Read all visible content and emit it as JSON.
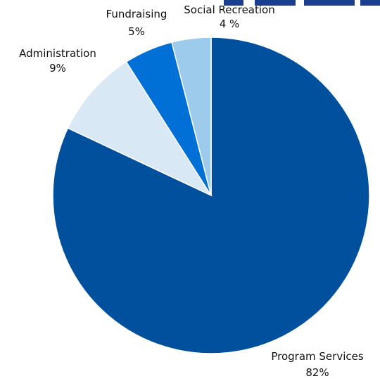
{
  "chart_data": {
    "type": "pie",
    "title": "",
    "slices": [
      {
        "label": "Program Services",
        "value": 82,
        "value_label": "82%",
        "color": "#00509e"
      },
      {
        "label": "Administration",
        "value": 9,
        "value_label": "9%",
        "color": "#d9e8f5"
      },
      {
        "label": "Fundraising",
        "value": 5,
        "value_label": "5%",
        "color": "#006fd6"
      },
      {
        "label": "Social Recreation",
        "value": 4,
        "value_label": "4 %",
        "color": "#9ccbeb"
      }
    ],
    "title_color": "#1b3f8f",
    "label_color": "#111111"
  }
}
